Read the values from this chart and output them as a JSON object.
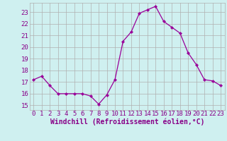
{
  "x": [
    0,
    1,
    2,
    3,
    4,
    5,
    6,
    7,
    8,
    9,
    10,
    11,
    12,
    13,
    14,
    15,
    16,
    17,
    18,
    19,
    20,
    21,
    22,
    23
  ],
  "y": [
    17.2,
    17.5,
    16.7,
    16.0,
    16.0,
    16.0,
    16.0,
    15.8,
    15.1,
    15.9,
    17.2,
    20.5,
    21.3,
    22.9,
    23.2,
    23.5,
    22.2,
    21.7,
    21.2,
    19.5,
    18.5,
    17.2,
    17.1,
    16.7
  ],
  "line_color": "#990099",
  "marker": "D",
  "marker_size": 2.2,
  "bg_color": "#cff0f0",
  "grid_color": "#b0b0b0",
  "xlabel": "Windchill (Refroidissement éolien,°C)",
  "xlabel_color": "#880088",
  "xlim": [
    -0.5,
    23.5
  ],
  "ylim": [
    14.6,
    23.8
  ],
  "yticks": [
    15,
    16,
    17,
    18,
    19,
    20,
    21,
    22,
    23
  ],
  "xticks": [
    0,
    1,
    2,
    3,
    4,
    5,
    6,
    7,
    8,
    9,
    10,
    11,
    12,
    13,
    14,
    15,
    16,
    17,
    18,
    19,
    20,
    21,
    22,
    23
  ],
  "tick_color": "#880088",
  "tick_fontsize": 6.5,
  "xlabel_fontsize": 7.0,
  "linewidth": 0.9
}
